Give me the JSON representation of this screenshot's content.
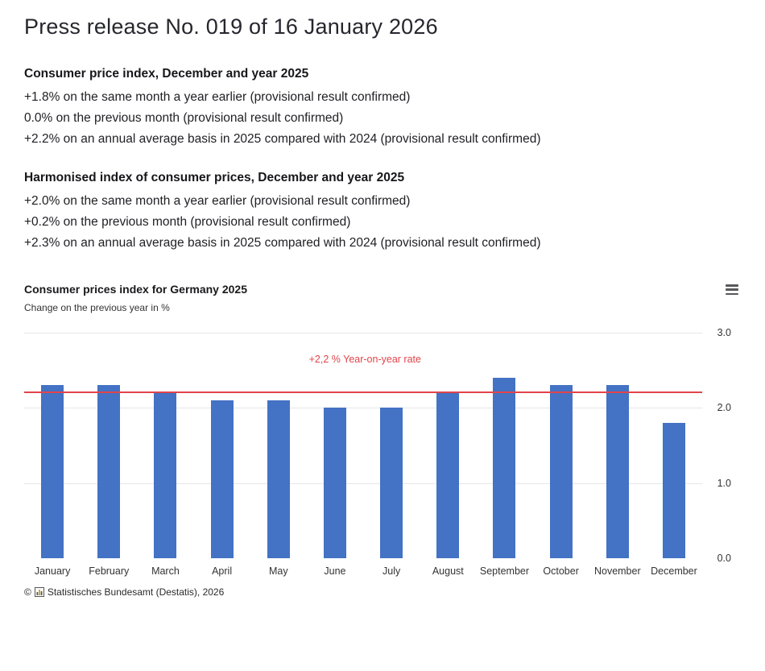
{
  "page": {
    "title": "Press release No. 019 of 16 January 2026"
  },
  "sections": [
    {
      "heading": "Consumer price index, December and year 2025",
      "lines": [
        "+1.8% on the same month a year earlier (provisional result confirmed)",
        "0.0% on the previous month (provisional result confirmed)",
        "+2.2% on an annual average basis in 2025 compared with 2024 (provisional result confirmed)"
      ]
    },
    {
      "heading": "Harmonised index of consumer prices, December and year 2025",
      "lines": [
        "+2.0% on the same month a year earlier (provisional result confirmed)",
        "+0.2% on the previous month (provisional result confirmed)",
        "+2.3% on an annual average basis in 2025 compared with 2024 (provisional result confirmed)"
      ]
    }
  ],
  "chart": {
    "title": "Consumer prices index for Germany 2025",
    "subtitle": "Change on the previous year in %",
    "menu_icon": "hamburger-menu-icon",
    "credits_prefix": "©",
    "credits": "Statistisches Bundesamt (Destatis), 2026"
  },
  "chart_data": {
    "type": "bar",
    "title": "Consumer prices index for Germany 2025",
    "subtitle": "Change on the previous year in %",
    "categories": [
      "January",
      "February",
      "March",
      "April",
      "May",
      "June",
      "July",
      "August",
      "September",
      "October",
      "November",
      "December"
    ],
    "values": [
      2.3,
      2.3,
      2.2,
      2.1,
      2.1,
      2.0,
      2.0,
      2.2,
      2.4,
      2.3,
      2.3,
      1.8
    ],
    "ylim": [
      0,
      3.0
    ],
    "yticks": [
      "0.0",
      "1.0",
      "2.0",
      "3.0"
    ],
    "yaxis_position": "right",
    "grid": true,
    "legend": "none",
    "reference_line": {
      "value": 2.2,
      "label": "+2,2 % Year-on-year rate",
      "color": "#e2444a"
    },
    "colors": {
      "bar": "#4472c4",
      "grid": "#e6e6e6"
    }
  }
}
